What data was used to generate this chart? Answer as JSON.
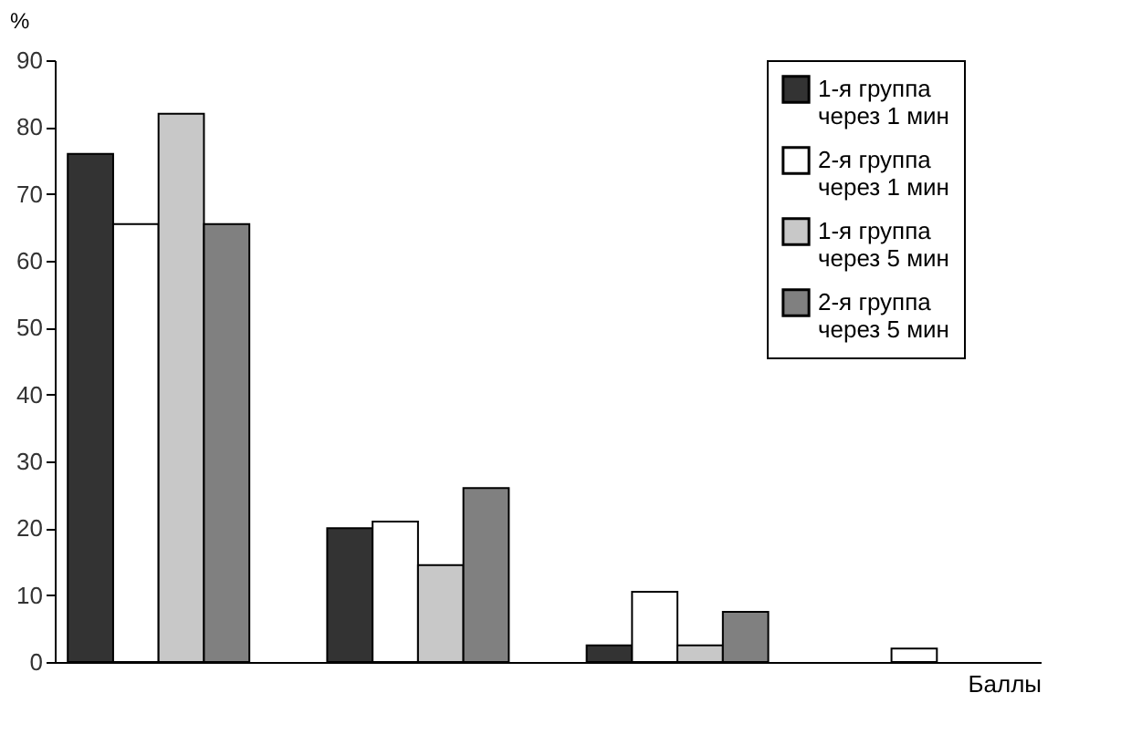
{
  "chart_data": {
    "type": "bar",
    "ylabel": "%",
    "xlabel": "Баллы",
    "categories": [
      null,
      null,
      null,
      null
    ],
    "series": [
      {
        "name": "1-я группа\nчерез 1 мин",
        "color": "#333333",
        "values": [
          76,
          20,
          2.5,
          null
        ]
      },
      {
        "name": "2-я группа\nчерез 1 мин",
        "color": "#ffffff",
        "values": [
          65.5,
          21,
          10.5,
          2
        ]
      },
      {
        "name": "1-я группа\nчерез 5 мин",
        "color": "#c8c8c8",
        "values": [
          82,
          14.5,
          2.5,
          null
        ]
      },
      {
        "name": "2-я группа\nчерез 5 мин",
        "color": "#808080",
        "values": [
          65.5,
          26,
          7.5,
          null
        ]
      }
    ],
    "ylim": [
      0,
      90
    ],
    "yticks": [
      0,
      10,
      20,
      30,
      40,
      50,
      60,
      70,
      80,
      90
    ],
    "grid": false,
    "legend": "right",
    "tick_labels": "y"
  }
}
